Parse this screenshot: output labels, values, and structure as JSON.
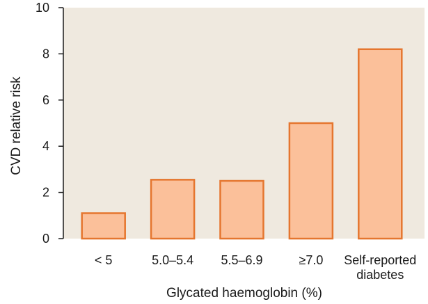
{
  "colors": {
    "plot_background": "#efe9df",
    "bar_fill": "#fbc09a",
    "bar_stroke": "#e5762f",
    "axis": "#1a1a1a"
  },
  "chart_data": {
    "type": "bar",
    "title": "",
    "xlabel": "Glycated haemoglobin (%)",
    "ylabel": "CVD relative risk",
    "ylim": [
      0,
      10
    ],
    "yticks": [
      "0",
      "2",
      "4",
      "6",
      "8",
      "10"
    ],
    "grid": false,
    "categories": [
      [
        "< 5"
      ],
      [
        "5.0–5.4"
      ],
      [
        "5.5–6.9"
      ],
      [
        "≥7.0"
      ],
      [
        "Self-reported",
        "diabetes"
      ]
    ],
    "values": [
      1.1,
      2.55,
      2.5,
      5.0,
      8.2
    ]
  }
}
